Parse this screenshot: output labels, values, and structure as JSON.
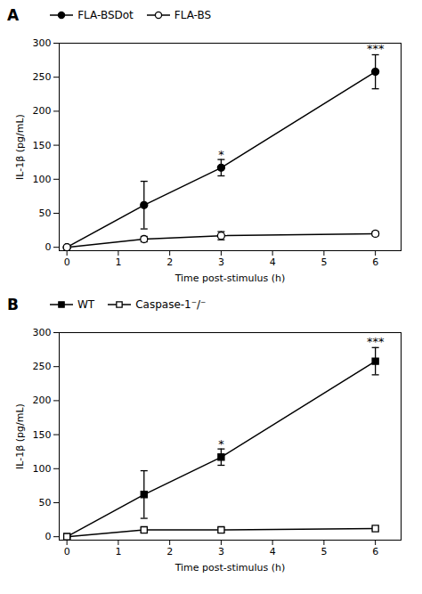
{
  "chart_data": [
    {
      "type": "line",
      "title": "A",
      "x": [
        0,
        1.5,
        3,
        6
      ],
      "series": [
        {
          "name": "FLA-BSDot",
          "values": [
            0,
            62,
            117,
            258
          ],
          "yerr": [
            0,
            35,
            12,
            25
          ],
          "marker": "circle",
          "color": "black"
        },
        {
          "name": "FLA-BS",
          "values": [
            0,
            12,
            17,
            20
          ],
          "yerr": [
            0,
            4,
            6,
            3
          ],
          "marker": "open-circle",
          "color": "black"
        }
      ],
      "annotations": [
        {
          "x": 3,
          "y": 128,
          "text": "*"
        },
        {
          "x": 6,
          "y": 283,
          "text": "***"
        }
      ],
      "xlabel": "Time post-stimulus (h)",
      "ylabel": "IL-1β (pg/mL)",
      "xlim": [
        -0.15,
        6.5
      ],
      "ylim": [
        -5,
        300
      ],
      "xticks": [
        0,
        1,
        2,
        3,
        4,
        5,
        6
      ],
      "yticks": [
        0,
        50,
        100,
        150,
        200,
        250,
        300
      ],
      "legend": "upper left",
      "grid": false
    },
    {
      "type": "line",
      "title": "B",
      "x": [
        0,
        1.5,
        3,
        6
      ],
      "series": [
        {
          "name": "WT",
          "values": [
            0,
            62,
            117,
            258
          ],
          "yerr": [
            0,
            35,
            12,
            20
          ],
          "marker": "square",
          "color": "black"
        },
        {
          "name": "Caspase-1⁻/⁻",
          "values": [
            0,
            10,
            10,
            12
          ],
          "yerr": [
            0,
            3,
            3,
            2
          ],
          "marker": "open-square",
          "color": "black"
        }
      ],
      "annotations": [
        {
          "x": 3,
          "y": 128,
          "text": "*"
        },
        {
          "x": 6,
          "y": 278,
          "text": "***"
        }
      ],
      "xlabel": "Time post-stimulus (h)",
      "ylabel": "IL-1β (pg/mL)",
      "xlim": [
        -0.15,
        6.5
      ],
      "ylim": [
        -5,
        300
      ],
      "xticks": [
        0,
        1,
        2,
        3,
        4,
        5,
        6
      ],
      "yticks": [
        0,
        50,
        100,
        150,
        200,
        250,
        300
      ],
      "legend": "upper left",
      "grid": false
    }
  ]
}
